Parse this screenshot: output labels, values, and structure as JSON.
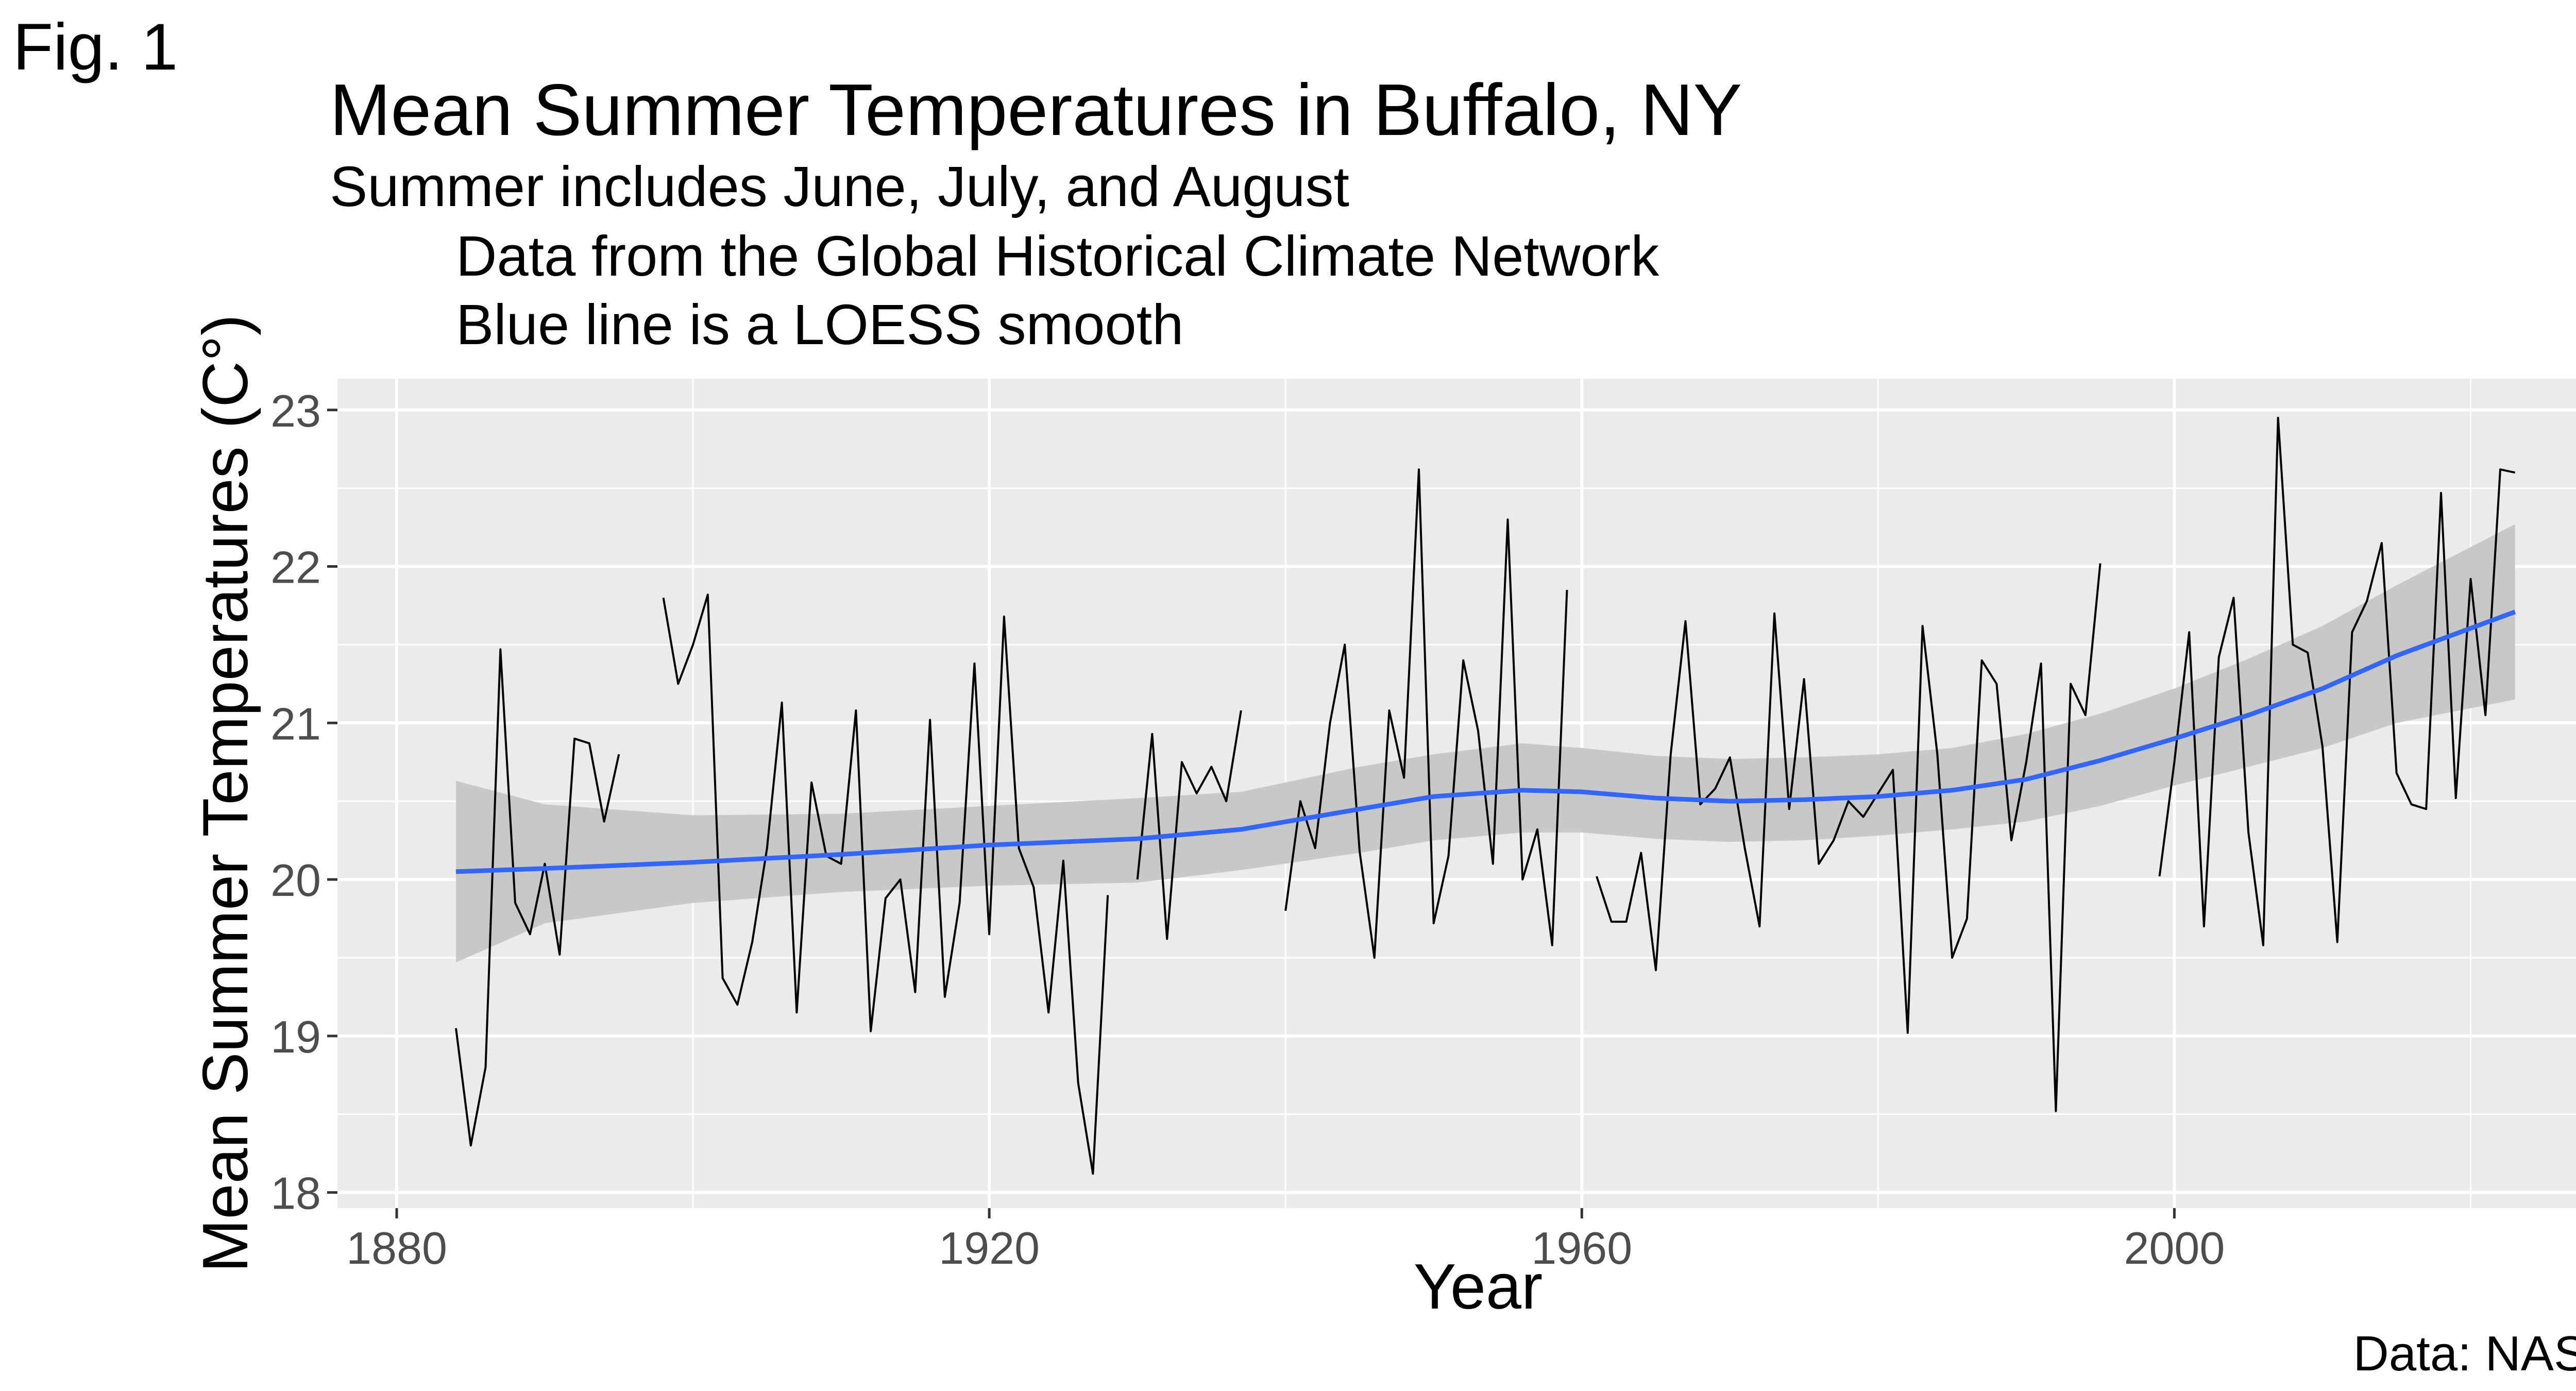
{
  "chart_data": {
    "type": "line",
    "fig_label": "Fig. 1",
    "title": "Mean Summer Temperatures in Buffalo, NY",
    "subtitle_lines": [
      "Summer includes June, July, and August",
      "Data from the Global Historical Climate Network",
      "Blue line is a LOESS smooth"
    ],
    "xlabel": "Year",
    "ylabel": "Mean Summer Temperatures (C°)",
    "caption": "Data: NASA",
    "xlim": [
      1876,
      2030
    ],
    "ylim": [
      17.9,
      23.2
    ],
    "x_ticks": [
      1880,
      1920,
      1960,
      2000
    ],
    "x_minor": [
      1900,
      1940,
      1980,
      2020
    ],
    "y_ticks": [
      18,
      19,
      20,
      21,
      22,
      23
    ],
    "grid": true,
    "panel_background": "#ebebeb",
    "grid_color": "#ffffff",
    "colors": {
      "observed": "#000000",
      "smooth": "#3366ff",
      "band": "#c8c8c8"
    },
    "series": [
      {
        "role": "observed",
        "segments": [
          [
            [
              1884,
              19.05
            ],
            [
              1885,
              18.3
            ],
            [
              1886,
              18.8
            ],
            [
              1887,
              21.47
            ],
            [
              1888,
              19.85
            ],
            [
              1889,
              19.65
            ],
            [
              1890,
              20.1
            ],
            [
              1891,
              19.52
            ],
            [
              1892,
              20.9
            ],
            [
              1893,
              20.87
            ],
            [
              1894,
              20.37
            ],
            [
              1895,
              20.8
            ]
          ],
          [
            [
              1898,
              21.8
            ],
            [
              1899,
              21.25
            ],
            [
              1900,
              21.5
            ],
            [
              1901,
              21.82
            ],
            [
              1902,
              19.37
            ],
            [
              1903,
              19.2
            ],
            [
              1904,
              19.6
            ],
            [
              1905,
              20.2
            ],
            [
              1906,
              21.13
            ],
            [
              1907,
              19.15
            ],
            [
              1908,
              20.62
            ],
            [
              1909,
              20.15
            ],
            [
              1910,
              20.1
            ],
            [
              1911,
              21.08
            ],
            [
              1912,
              19.03
            ],
            [
              1913,
              19.88
            ],
            [
              1914,
              20.0
            ],
            [
              1915,
              19.28
            ],
            [
              1916,
              21.02
            ],
            [
              1917,
              19.25
            ],
            [
              1918,
              19.85
            ],
            [
              1919,
              21.38
            ],
            [
              1920,
              19.65
            ],
            [
              1921,
              21.68
            ],
            [
              1922,
              20.2
            ],
            [
              1923,
              19.95
            ],
            [
              1924,
              19.15
            ],
            [
              1925,
              20.12
            ],
            [
              1926,
              18.7
            ],
            [
              1927,
              18.12
            ],
            [
              1928,
              19.9
            ]
          ],
          [
            [
              1930,
              20.0
            ],
            [
              1931,
              20.93
            ],
            [
              1932,
              19.62
            ],
            [
              1933,
              20.75
            ],
            [
              1934,
              20.55
            ],
            [
              1935,
              20.72
            ],
            [
              1936,
              20.5
            ],
            [
              1937,
              21.08
            ]
          ],
          [
            [
              1940,
              19.8
            ],
            [
              1941,
              20.5
            ],
            [
              1942,
              20.2
            ],
            [
              1943,
              21.0
            ],
            [
              1944,
              21.5
            ],
            [
              1945,
              20.18
            ],
            [
              1946,
              19.5
            ],
            [
              1947,
              21.08
            ],
            [
              1948,
              20.65
            ],
            [
              1949,
              22.62
            ],
            [
              1950,
              19.72
            ],
            [
              1951,
              20.15
            ],
            [
              1952,
              21.4
            ],
            [
              1953,
              20.95
            ],
            [
              1954,
              20.1
            ],
            [
              1955,
              22.3
            ],
            [
              1956,
              20.0
            ],
            [
              1957,
              20.32
            ],
            [
              1958,
              19.58
            ],
            [
              1959,
              21.85
            ]
          ],
          [
            [
              1961,
              20.02
            ],
            [
              1962,
              19.73
            ],
            [
              1963,
              19.73
            ],
            [
              1964,
              20.17
            ],
            [
              1965,
              19.42
            ],
            [
              1966,
              20.8
            ],
            [
              1967,
              21.65
            ],
            [
              1968,
              20.48
            ],
            [
              1969,
              20.58
            ],
            [
              1970,
              20.78
            ],
            [
              1971,
              20.2
            ],
            [
              1972,
              19.7
            ],
            [
              1973,
              21.7
            ],
            [
              1974,
              20.45
            ],
            [
              1975,
              21.28
            ],
            [
              1976,
              20.1
            ],
            [
              1977,
              20.25
            ],
            [
              1978,
              20.5
            ],
            [
              1979,
              20.4
            ],
            [
              1980,
              20.55
            ],
            [
              1981,
              20.7
            ],
            [
              1982,
              19.02
            ],
            [
              1983,
              21.62
            ],
            [
              1984,
              20.8
            ],
            [
              1985,
              19.5
            ],
            [
              1986,
              19.75
            ],
            [
              1987,
              21.4
            ],
            [
              1988,
              21.25
            ],
            [
              1989,
              20.25
            ],
            [
              1990,
              20.75
            ],
            [
              1991,
              21.38
            ],
            [
              1992,
              18.52
            ],
            [
              1993,
              21.25
            ],
            [
              1994,
              21.05
            ],
            [
              1995,
              22.02
            ]
          ],
          [
            [
              1999,
              20.02
            ],
            [
              2000,
              20.75
            ],
            [
              2001,
              21.58
            ],
            [
              2002,
              19.7
            ],
            [
              2003,
              21.42
            ],
            [
              2004,
              21.8
            ],
            [
              2005,
              20.3
            ],
            [
              2006,
              19.58
            ],
            [
              2007,
              22.95
            ],
            [
              2008,
              21.5
            ],
            [
              2009,
              21.45
            ],
            [
              2010,
              20.85
            ],
            [
              2011,
              19.6
            ],
            [
              2012,
              21.58
            ],
            [
              2013,
              21.78
            ],
            [
              2014,
              22.15
            ],
            [
              2015,
              20.68
            ],
            [
              2016,
              20.48
            ],
            [
              2017,
              20.45
            ],
            [
              2018,
              22.47
            ],
            [
              2019,
              20.52
            ],
            [
              2020,
              21.92
            ],
            [
              2021,
              21.05
            ],
            [
              2022,
              22.62
            ],
            [
              2023,
              22.6
            ]
          ]
        ]
      },
      {
        "role": "smooth",
        "points": [
          [
            1884,
            20.05
          ],
          [
            1890,
            20.07
          ],
          [
            1900,
            20.11
          ],
          [
            1910,
            20.16
          ],
          [
            1920,
            20.22
          ],
          [
            1930,
            20.26
          ],
          [
            1937,
            20.32
          ],
          [
            1945,
            20.45
          ],
          [
            1950,
            20.53
          ],
          [
            1956,
            20.57
          ],
          [
            1960,
            20.56
          ],
          [
            1965,
            20.52
          ],
          [
            1970,
            20.5
          ],
          [
            1975,
            20.51
          ],
          [
            1980,
            20.53
          ],
          [
            1985,
            20.57
          ],
          [
            1990,
            20.64
          ],
          [
            1995,
            20.76
          ],
          [
            2000,
            20.9
          ],
          [
            2005,
            21.05
          ],
          [
            2010,
            21.22
          ],
          [
            2015,
            21.43
          ],
          [
            2023,
            21.71
          ]
        ],
        "band_upper": [
          [
            1884,
            20.63
          ],
          [
            1890,
            20.48
          ],
          [
            1900,
            20.41
          ],
          [
            1910,
            20.42
          ],
          [
            1920,
            20.47
          ],
          [
            1930,
            20.52
          ],
          [
            1937,
            20.56
          ],
          [
            1945,
            20.72
          ],
          [
            1950,
            20.8
          ],
          [
            1956,
            20.87
          ],
          [
            1960,
            20.84
          ],
          [
            1965,
            20.79
          ],
          [
            1970,
            20.77
          ],
          [
            1975,
            20.78
          ],
          [
            1980,
            20.8
          ],
          [
            1985,
            20.84
          ],
          [
            1990,
            20.93
          ],
          [
            1995,
            21.06
          ],
          [
            2000,
            21.22
          ],
          [
            2005,
            21.41
          ],
          [
            2010,
            21.62
          ],
          [
            2015,
            21.88
          ],
          [
            2023,
            22.27
          ]
        ],
        "band_lower": [
          [
            1884,
            19.47
          ],
          [
            1890,
            19.72
          ],
          [
            1900,
            19.85
          ],
          [
            1910,
            19.92
          ],
          [
            1920,
            19.96
          ],
          [
            1930,
            19.98
          ],
          [
            1937,
            20.06
          ],
          [
            1945,
            20.17
          ],
          [
            1950,
            20.25
          ],
          [
            1956,
            20.3
          ],
          [
            1960,
            20.3
          ],
          [
            1965,
            20.26
          ],
          [
            1970,
            20.24
          ],
          [
            1975,
            20.25
          ],
          [
            1980,
            20.28
          ],
          [
            1985,
            20.32
          ],
          [
            1990,
            20.37
          ],
          [
            1995,
            20.47
          ],
          [
            2000,
            20.6
          ],
          [
            2005,
            20.72
          ],
          [
            2010,
            20.84
          ],
          [
            2015,
            21.0
          ],
          [
            2023,
            21.15
          ]
        ]
      }
    ]
  }
}
